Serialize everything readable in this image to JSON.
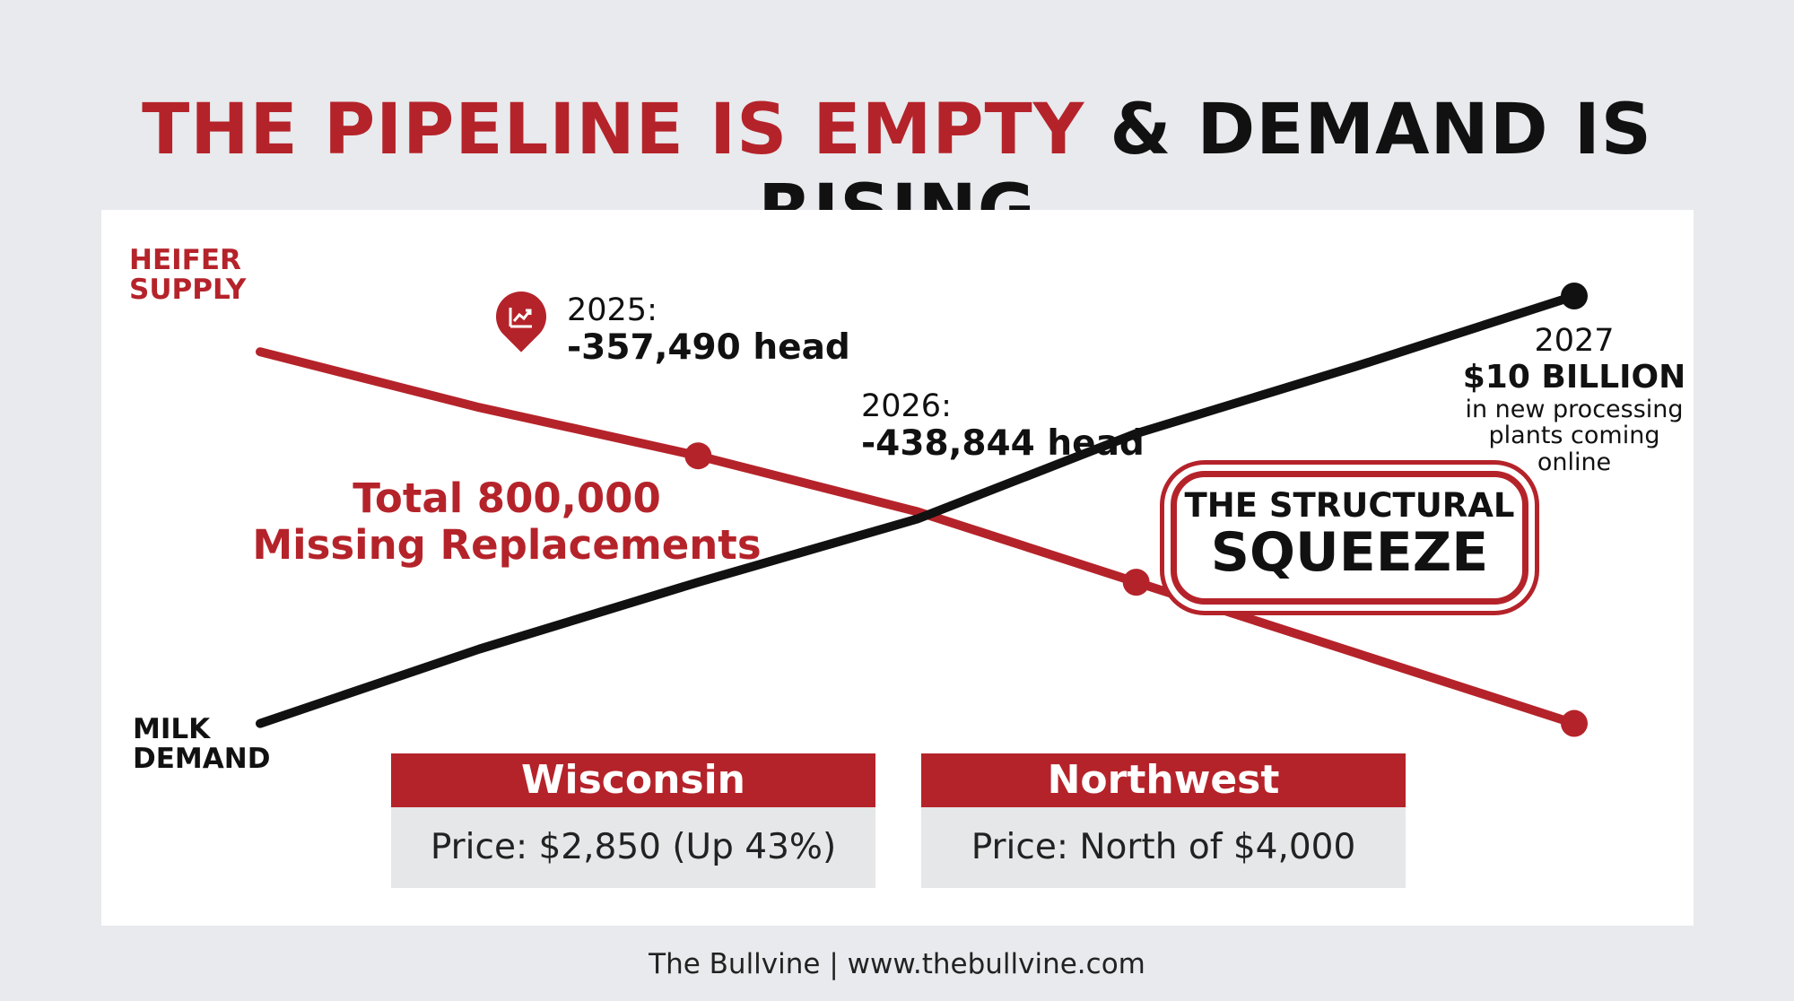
{
  "title": {
    "part1": "THE PIPELINE IS EMPTY",
    "part2": "& DEMAND IS RISING"
  },
  "chart_data": {
    "type": "line",
    "x": [
      2024,
      2024.5,
      2025,
      2025.5,
      2026,
      2026.5,
      2027
    ],
    "series": [
      {
        "name": "HEIFER SUPPLY",
        "color": "#b5232a",
        "values": [
          100,
          85,
          72,
          57,
          38,
          19,
          0
        ],
        "markers": [
          2025,
          2026,
          2027
        ]
      },
      {
        "name": "MILK DEMAND",
        "color": "#111111",
        "values": [
          0,
          20,
          38,
          55,
          78,
          96,
          115
        ],
        "markers": [
          2027
        ]
      }
    ],
    "annotations": {
      "y2025_year": "2025:",
      "y2025_value": "-357,490 head",
      "y2026_year": "2026:",
      "y2026_value": "-438,844 head",
      "y2027_year": "2027",
      "y2027_value": "$10 BILLION",
      "y2027_line1": "in new processing",
      "y2027_line2": "plants coming",
      "y2027_line3": "online",
      "missing_line1": "Total 800,000",
      "missing_line2": "Missing Replacements",
      "squeeze_line1": "THE STRUCTURAL",
      "squeeze_line2": "SQUEEZE"
    },
    "labels": {
      "heifer_1": "HEIFER",
      "heifer_2": "SUPPLY",
      "milk_1": "MILK",
      "milk_2": "DEMAND"
    }
  },
  "regions": [
    {
      "name": "Wisconsin",
      "price": "Price: $2,850 (Up 43%)"
    },
    {
      "name": "Northwest",
      "price": "Price: North of $4,000"
    }
  ],
  "icons": {
    "pin": "trend-chart-pin-icon"
  },
  "footer": "The Bullvine | www.thebullvine.com"
}
